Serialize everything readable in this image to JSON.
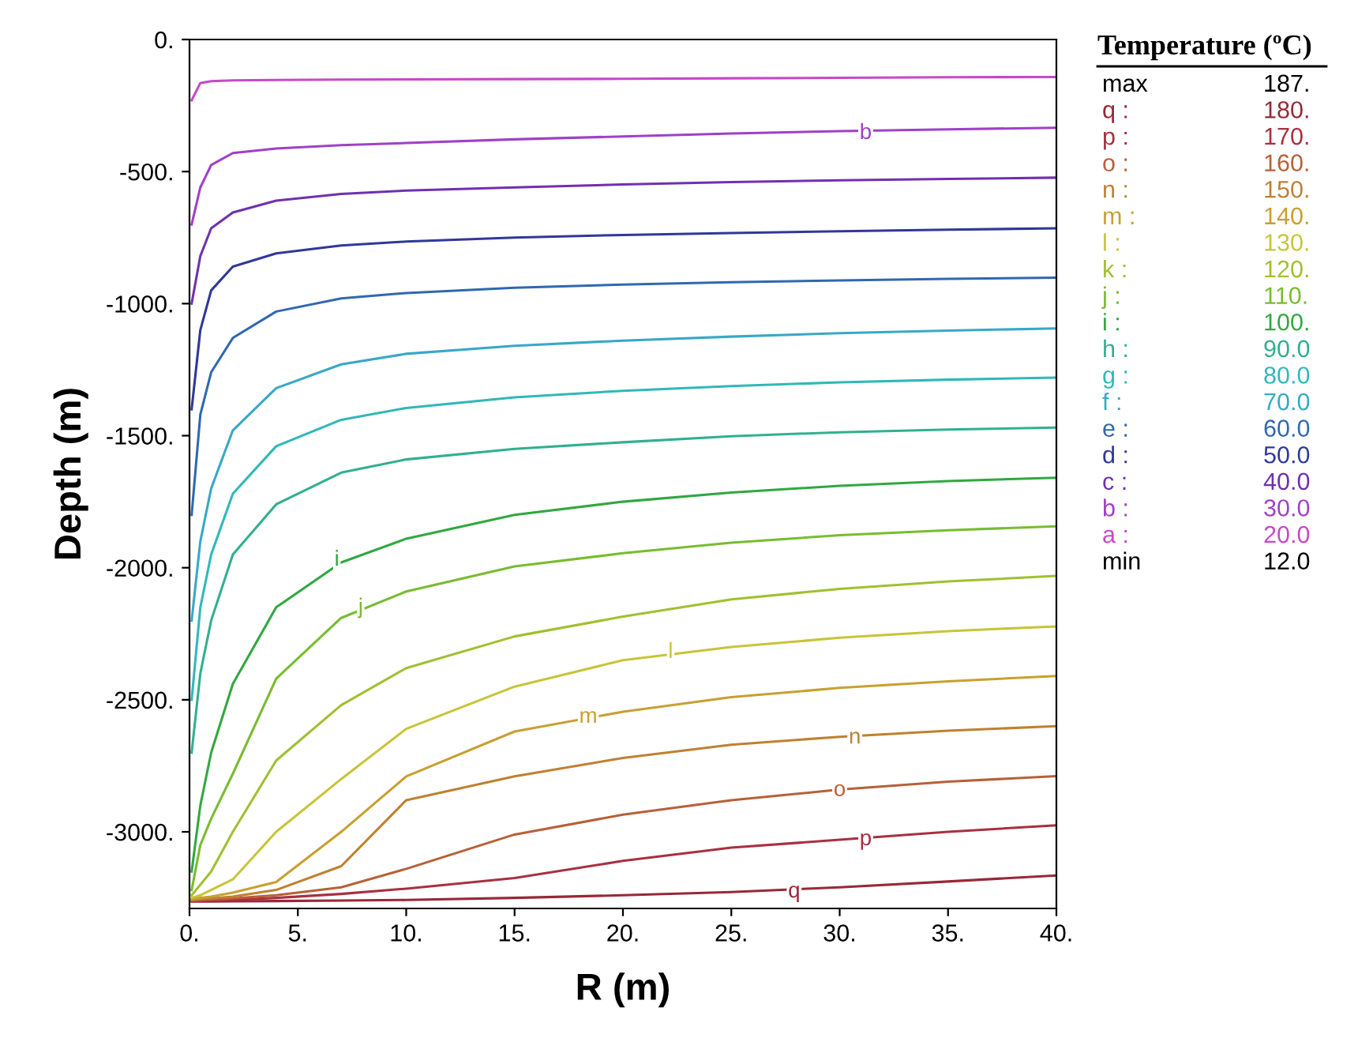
{
  "chart_data": {
    "type": "line",
    "xlabel": "R (m)",
    "ylabel": "Depth (m)",
    "legend_title": "Temperature (ºC)",
    "x": [
      0.1,
      0.5,
      1,
      2,
      4,
      7,
      10,
      15,
      20,
      25,
      30,
      35,
      40
    ],
    "xlim": [
      0,
      40
    ],
    "ylim": [
      -3290,
      0
    ],
    "xticks": [
      {
        "value": 0,
        "label": "0."
      },
      {
        "value": 5,
        "label": "5."
      },
      {
        "value": 10,
        "label": "10."
      },
      {
        "value": 15,
        "label": "15."
      },
      {
        "value": 20,
        "label": "20."
      },
      {
        "value": 25,
        "label": "25."
      },
      {
        "value": 30,
        "label": "30."
      },
      {
        "value": 35,
        "label": "35."
      },
      {
        "value": 40,
        "label": "40."
      }
    ],
    "yticks": [
      {
        "value": 0,
        "label": "0."
      },
      {
        "value": -500,
        "label": "-500."
      },
      {
        "value": -1000,
        "label": "-1000."
      },
      {
        "value": -1500,
        "label": "-1500."
      },
      {
        "value": -2000,
        "label": "-2000."
      },
      {
        "value": -2500,
        "label": "-2500."
      },
      {
        "value": -3000,
        "label": "-3000."
      }
    ],
    "grid": false,
    "marker": "none",
    "line_style": "solid",
    "series": [
      {
        "name": "q : 180.",
        "color": "#982838",
        "values": [
          -3264,
          -3264,
          -3264,
          -3263,
          -3262,
          -3260,
          -3258,
          -3250,
          -3240,
          -3228,
          -3210,
          -3188,
          -3165
        ]
      },
      {
        "name": "p : 170.",
        "color": "#a83040",
        "values": [
          -3262,
          -3261,
          -3260,
          -3258,
          -3250,
          -3235,
          -3215,
          -3175,
          -3110,
          -3060,
          -3030,
          -3000,
          -2975
        ]
      },
      {
        "name": "o : 160.",
        "color": "#b86038",
        "values": [
          -3260,
          -3258,
          -3256,
          -3252,
          -3240,
          -3210,
          -3140,
          -3010,
          -2935,
          -2880,
          -2840,
          -2810,
          -2789
        ]
      },
      {
        "name": "n : 150.",
        "color": "#c08030",
        "values": [
          -3258,
          -3255,
          -3252,
          -3245,
          -3220,
          -3130,
          -2880,
          -2790,
          -2720,
          -2670,
          -2640,
          -2617,
          -2600
        ]
      },
      {
        "name": "m : 140.",
        "color": "#c8a030",
        "values": [
          -3255,
          -3250,
          -3245,
          -3230,
          -3190,
          -3000,
          -2790,
          -2620,
          -2545,
          -2490,
          -2455,
          -2430,
          -2410
        ]
      },
      {
        "name": "l : 130.",
        "color": "#c8c438",
        "values": [
          -3250,
          -3240,
          -3220,
          -3180,
          -3000,
          -2800,
          -2610,
          -2450,
          -2350,
          -2300,
          -2265,
          -2240,
          -2222
        ]
      },
      {
        "name": "k : 120.",
        "color": "#a0c030",
        "values": [
          -3240,
          -3200,
          -3150,
          -3000,
          -2730,
          -2520,
          -2380,
          -2260,
          -2185,
          -2120,
          -2080,
          -2052,
          -2031
        ]
      },
      {
        "name": "j : 110.",
        "color": "#78bc30",
        "values": [
          -3220,
          -3050,
          -2950,
          -2780,
          -2420,
          -2190,
          -2090,
          -1995,
          -1945,
          -1905,
          -1877,
          -1858,
          -1843
        ]
      },
      {
        "name": "i : 100.",
        "color": "#30a840",
        "values": [
          -3150,
          -2900,
          -2700,
          -2440,
          -2150,
          -1980,
          -1890,
          -1800,
          -1750,
          -1715,
          -1690,
          -1672,
          -1659
        ]
      },
      {
        "name": "h : 90.0",
        "color": "#30b090",
        "values": [
          -2700,
          -2400,
          -2200,
          -1950,
          -1760,
          -1640,
          -1590,
          -1550,
          -1525,
          -1502,
          -1487,
          -1477,
          -1469
        ]
      },
      {
        "name": "g : 80.0",
        "color": "#30b8b8",
        "values": [
          -2500,
          -2150,
          -1950,
          -1720,
          -1540,
          -1440,
          -1395,
          -1355,
          -1330,
          -1312,
          -1298,
          -1288,
          -1280
        ]
      },
      {
        "name": "f : 70.0",
        "color": "#38a8c8",
        "values": [
          -2200,
          -1900,
          -1700,
          -1480,
          -1320,
          -1230,
          -1190,
          -1160,
          -1140,
          -1125,
          -1112,
          -1102,
          -1094
        ]
      },
      {
        "name": "e : 60.0",
        "color": "#3068b0",
        "values": [
          -1800,
          -1420,
          -1260,
          -1130,
          -1030,
          -980,
          -960,
          -940,
          -928,
          -919,
          -912,
          -906,
          -902
        ]
      },
      {
        "name": "d : 50.0",
        "color": "#303898",
        "values": [
          -1400,
          -1100,
          -950,
          -860,
          -810,
          -780,
          -765,
          -750,
          -740,
          -733,
          -726,
          -720,
          -715
        ]
      },
      {
        "name": "c : 40.0",
        "color": "#7030b0",
        "values": [
          -1000,
          -820,
          -715,
          -655,
          -610,
          -585,
          -572,
          -560,
          -549,
          -540,
          -533,
          -528,
          -523
        ]
      },
      {
        "name": "b : 30.0",
        "color": "#a040c8",
        "values": [
          -700,
          -560,
          -475,
          -430,
          -413,
          -400,
          -392,
          -378,
          -367,
          -356,
          -347,
          -340,
          -334
        ]
      },
      {
        "name": "a : 20.0",
        "color": "#c848c8",
        "values": [
          -230,
          -165,
          -158,
          -155,
          -153,
          -152,
          -151,
          -150,
          -149,
          -147,
          -145,
          -143,
          -142
        ]
      }
    ],
    "annotations": [
      "max 187.",
      "min 12.0",
      {
        "text": "b",
        "x": 31.2,
        "y": -355
      },
      {
        "text": "i",
        "x": 6.8,
        "y": -1971
      },
      {
        "text": "j",
        "x": 7.9,
        "y": -2152
      },
      {
        "text": "l",
        "x": 22.2,
        "y": -2320
      },
      {
        "text": "m",
        "x": 18.4,
        "y": -2566
      },
      {
        "text": "n",
        "x": 30.7,
        "y": -2644
      },
      {
        "text": "o",
        "x": 30.0,
        "y": -2843
      },
      {
        "text": "p",
        "x": 31.2,
        "y": -3029
      },
      {
        "text": "q",
        "x": 27.9,
        "y": -3227
      }
    ]
  }
}
